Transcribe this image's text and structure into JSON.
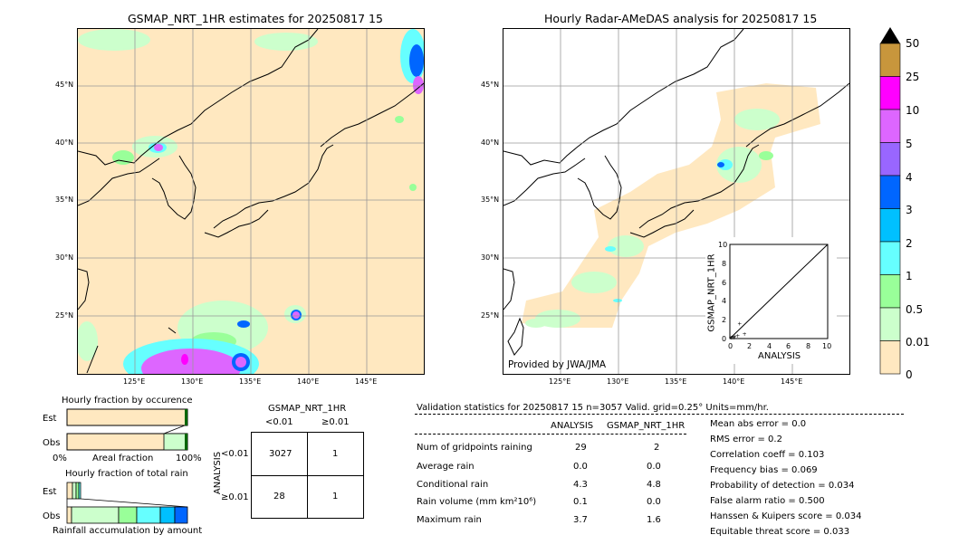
{
  "left_map": {
    "title": "GSMAP_NRT_1HR estimates for 20250817 15",
    "lat_ticks": [
      "45°N",
      "40°N",
      "35°N",
      "30°N",
      "25°N"
    ],
    "lon_ticks": [
      "125°E",
      "130°E",
      "135°E",
      "140°E",
      "145°E"
    ]
  },
  "right_map": {
    "title": "Hourly Radar-AMeDAS analysis for 20250817 15",
    "lat_ticks": [
      "45°N",
      "40°N",
      "35°N",
      "30°N",
      "25°N"
    ],
    "lon_ticks": [
      "125°E",
      "130°E",
      "135°E",
      "140°E",
      "145°E"
    ],
    "credit": "Provided by JWA/JMA"
  },
  "scatter": {
    "ylabel": "GSMAP_NRT_1HR",
    "xlabel": "ANALYSIS",
    "ticks": [
      "0",
      "2",
      "4",
      "6",
      "8",
      "10"
    ]
  },
  "colorbar": {
    "labels": [
      "50",
      "25",
      "10",
      "5",
      "4",
      "3",
      "2",
      "1",
      "0.5",
      "0.01",
      "0"
    ],
    "colors": [
      "#c8963c",
      "#ff00ff",
      "#dd66ff",
      "#9966ff",
      "#0066ff",
      "#00c0ff",
      "#66ffff",
      "#99ff99",
      "#ccffcc",
      "#ffe8c0"
    ]
  },
  "occurrence": {
    "title": "Hourly fraction by occurence",
    "est_label": "Est",
    "obs_label": "Obs",
    "axis_left": "0%",
    "axis_mid": "Areal fraction",
    "axis_right": "100%"
  },
  "total_rain": {
    "title": "Hourly fraction of total rain",
    "est_label": "Est",
    "obs_label": "Obs",
    "footer": "Rainfall accumulation by amount"
  },
  "contingency": {
    "title": "GSMAP_NRT_1HR",
    "col_lt": "<0.01",
    "col_ge": "≥0.01",
    "row_axis": "ANALYSIS",
    "row_lt": "<0.01",
    "row_ge": "≥0.01",
    "cells": [
      "3027",
      "1",
      "28",
      "1"
    ]
  },
  "validation": {
    "header": "Validation statistics for 20250817 15  n=3057 Valid. grid=0.25° Units=mm/hr.",
    "col_analysis": "ANALYSIS",
    "col_gsmap": "GSMAP_NRT_1HR",
    "rows": [
      {
        "label": "Num of gridpoints raining",
        "analysis": "29",
        "gsmap": "2"
      },
      {
        "label": "Average rain",
        "analysis": "0.0",
        "gsmap": "0.0"
      },
      {
        "label": "Conditional rain",
        "analysis": "4.3",
        "gsmap": "4.8"
      },
      {
        "label": "Rain volume (mm km²10⁶)",
        "analysis": "0.1",
        "gsmap": "0.0"
      },
      {
        "label": "Maximum rain",
        "analysis": "3.7",
        "gsmap": "1.6"
      }
    ],
    "scores": [
      "Mean abs error =    0.0",
      "RMS error =    0.2",
      "Correlation coeff =  0.103",
      "Frequency bias =  0.069",
      "Probability of detection =  0.034",
      "False alarm ratio =  0.500",
      "Hanssen & Kuipers score =  0.034",
      "Equitable threat score =  0.033"
    ]
  },
  "chart_data": [
    {
      "type": "heatmap",
      "title": "GSMAP_NRT_1HR estimates for 20250817 15",
      "x_ticks": [
        "125°E",
        "130°E",
        "135°E",
        "140°E",
        "145°E"
      ],
      "y_ticks": [
        "45°N",
        "40°N",
        "35°N",
        "30°N",
        "25°N"
      ]
    },
    {
      "type": "heatmap",
      "title": "Hourly Radar-AMeDAS analysis for 20250817 15",
      "x_ticks": [
        "125°E",
        "130°E",
        "135°E",
        "140°E",
        "145°E"
      ],
      "y_ticks": [
        "45°N",
        "40°N",
        "35°N",
        "30°N",
        "25°N"
      ]
    },
    {
      "type": "scatter",
      "xlabel": "ANALYSIS",
      "ylabel": "GSMAP_NRT_1HR",
      "xlim": [
        0,
        10
      ],
      "ylim": [
        0,
        10
      ],
      "points": [
        [
          0.1,
          0.1
        ],
        [
          0.2,
          0.1
        ],
        [
          0.3,
          0.2
        ],
        [
          0.5,
          0.2
        ],
        [
          0.8,
          0.3
        ],
        [
          1.0,
          1.6
        ],
        [
          1.5,
          0.5
        ],
        [
          0.4,
          0.1
        ]
      ]
    },
    {
      "type": "table",
      "title": "GSMAP_NRT_1HR",
      "columns": [
        "<0.01",
        "≥0.01"
      ],
      "rows": [
        "<0.01",
        "≥0.01"
      ],
      "values": [
        [
          3027,
          1
        ],
        [
          28,
          1
        ]
      ]
    }
  ]
}
